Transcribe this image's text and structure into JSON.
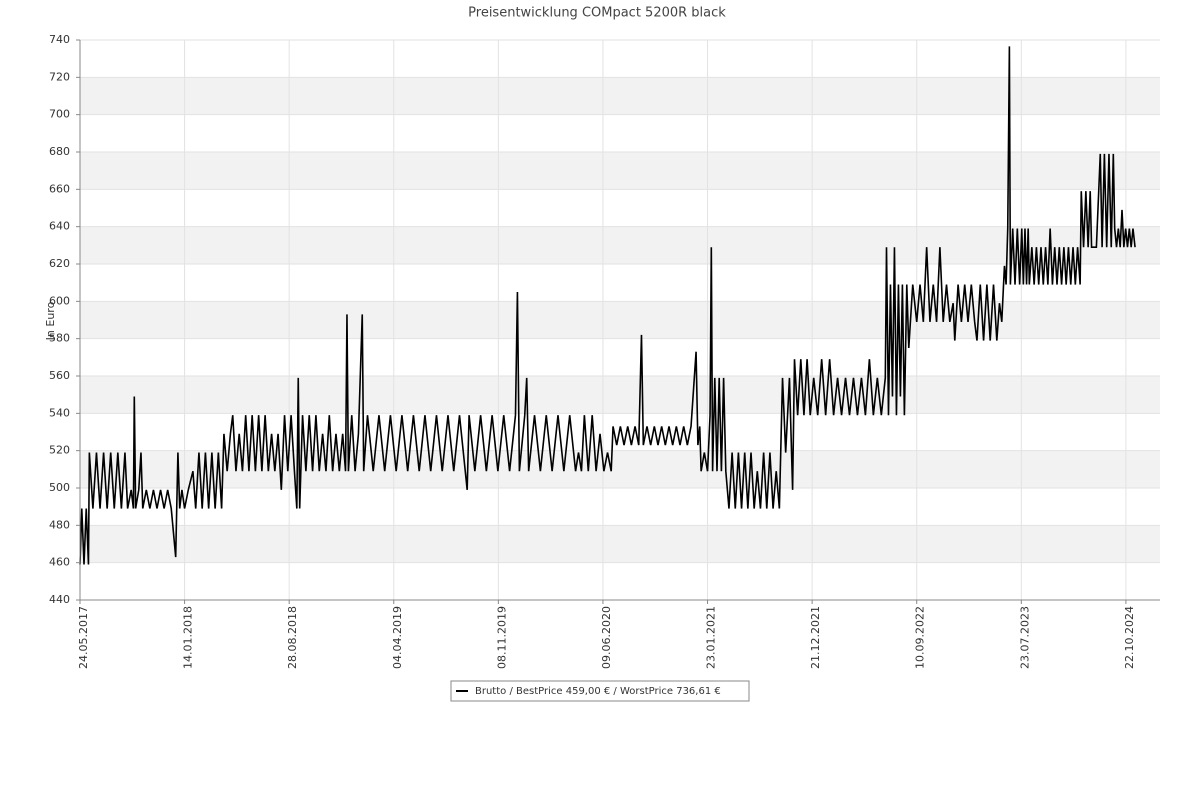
{
  "chart_data": {
    "type": "line",
    "title": "Preisentwicklung COMpact 5200R black",
    "y_label": "In Euro",
    "ylim": [
      440,
      740
    ],
    "yticks": [
      440,
      460,
      480,
      500,
      520,
      540,
      560,
      580,
      600,
      620,
      640,
      660,
      680,
      700,
      720,
      740
    ],
    "xlim": [
      "24.05.2017",
      "20.03.2025"
    ],
    "xticks": [
      "24.05.2017",
      "14.01.2018",
      "28.08.2018",
      "04.04.2019",
      "08.11.2019",
      "09.06.2020",
      "23.01.2021",
      "21.12.2021",
      "10.09.2022",
      "23.07.2023",
      "22.10.2024"
    ],
    "grid": true,
    "legend": "bottom",
    "x": [
      "24.05.2017",
      "28.05.2017",
      "02.06.2017",
      "07.06.2017",
      "12.06.2017",
      "14.06.2017",
      "22.06.2017",
      "30.06.2017",
      "08.07.2017",
      "16.07.2017",
      "24.07.2017",
      "01.08.2017",
      "09.08.2017",
      "17.08.2017",
      "25.08.2017",
      "02.09.2017",
      "08.09.2017",
      "16.09.2017",
      "21.09.2017",
      "23.09.2017",
      "26.09.2017",
      "03.10.2017",
      "08.10.2017",
      "12.10.2017",
      "20.10.2017",
      "28.10.2017",
      "05.11.2017",
      "13.11.2017",
      "21.11.2017",
      "29.11.2017",
      "07.12.2017",
      "15.12.2017",
      "25.12.2017",
      "30.12.2017",
      "03.01.2018",
      "08.01.2018",
      "14.01.2018",
      "22.01.2018",
      "01.02.2018",
      "07.02.2018",
      "14.02.2018",
      "21.02.2018",
      "28.02.2018",
      "07.03.2018",
      "14.03.2018",
      "21.03.2018",
      "28.03.2018",
      "04.04.2018",
      "09.04.2018",
      "16.04.2018",
      "23.04.2018",
      "28.04.2018",
      "05.05.2018",
      "12.05.2018",
      "19.05.2018",
      "26.05.2018",
      "02.06.2018",
      "09.06.2018",
      "16.06.2018",
      "23.06.2018",
      "30.06.2018",
      "07.07.2018",
      "14.07.2018",
      "21.07.2018",
      "28.07.2018",
      "04.08.2018",
      "11.08.2018",
      "18.08.2018",
      "25.08.2018",
      "01.09.2018",
      "08.09.2018",
      "13.09.2018",
      "16.09.2018",
      "19.09.2018",
      "25.09.2018",
      "02.10.2018",
      "09.10.2018",
      "16.10.2018",
      "23.10.2018",
      "30.10.2018",
      "06.11.2018",
      "13.11.2018",
      "20.11.2018",
      "27.11.2018",
      "04.12.2018",
      "11.12.2018",
      "18.12.2018",
      "24.12.2018",
      "27.12.2018",
      "30.12.2018",
      "06.01.2019",
      "13.01.2019",
      "20.01.2019",
      "28.01.2019",
      "31.01.2019",
      "08.02.2019",
      "20.02.2019",
      "04.03.2019",
      "16.03.2019",
      "28.03.2019",
      "09.04.2019",
      "21.04.2019",
      "03.05.2019",
      "15.05.2019",
      "27.05.2019",
      "08.06.2019",
      "20.06.2019",
      "02.07.2019",
      "14.07.2019",
      "26.07.2019",
      "07.08.2019",
      "19.08.2019",
      "31.08.2019",
      "04.09.2019",
      "08.09.2019",
      "20.09.2019",
      "02.10.2019",
      "14.10.2019",
      "26.10.2019",
      "07.11.2019",
      "19.11.2019",
      "01.12.2019",
      "13.12.2019",
      "17.12.2019",
      "21.12.2019",
      "01.01.2020",
      "05.01.2020",
      "09.01.2020",
      "21.01.2020",
      "02.02.2020",
      "14.02.2020",
      "26.02.2020",
      "09.03.2020",
      "21.03.2020",
      "02.04.2020",
      "14.04.2020",
      "20.04.2020",
      "26.04.2020",
      "02.05.2020",
      "10.05.2020",
      "18.05.2020",
      "26.05.2020",
      "03.06.2020",
      "11.06.2020",
      "19.06.2020",
      "27.06.2020",
      "01.07.2020",
      "09.07.2020",
      "17.07.2020",
      "25.07.2020",
      "02.08.2020",
      "10.08.2020",
      "18.08.2020",
      "26.08.2020",
      "01.09.2020",
      "05.09.2020",
      "13.09.2020",
      "21.09.2020",
      "29.09.2020",
      "07.10.2020",
      "15.10.2020",
      "23.10.2020",
      "31.10.2020",
      "08.11.2020",
      "16.11.2020",
      "24.11.2020",
      "02.12.2020",
      "10.12.2020",
      "18.12.2020",
      "29.12.2020",
      "02.01.2021",
      "06.01.2021",
      "09.01.2021",
      "16.01.2021",
      "23.01.2021",
      "31.01.2021",
      "04.02.2021",
      "08.02.2021",
      "15.02.2021",
      "22.02.2021",
      "01.03.2021",
      "08.03.2021",
      "15.03.2021",
      "22.03.2021",
      "01.04.2021",
      "11.04.2021",
      "21.04.2021",
      "01.05.2021",
      "11.05.2021",
      "21.05.2021",
      "31.05.2021",
      "10.06.2021",
      "20.06.2021",
      "30.06.2021",
      "10.07.2021",
      "20.07.2021",
      "30.07.2021",
      "09.08.2021",
      "19.08.2021",
      "29.08.2021",
      "08.09.2021",
      "18.09.2021",
      "28.09.2021",
      "10.10.2021",
      "20.10.2021",
      "26.10.2021",
      "05.11.2021",
      "15.11.2021",
      "25.11.2021",
      "05.12.2021",
      "15.12.2021",
      "25.12.2021",
      "04.01.2022",
      "14.01.2022",
      "24.01.2022",
      "03.02.2022",
      "13.02.2022",
      "23.02.2022",
      "05.03.2022",
      "15.03.2022",
      "25.03.2022",
      "04.04.2022",
      "14.04.2022",
      "24.04.2022",
      "04.05.2022",
      "14.05.2022",
      "24.05.2022",
      "03.06.2022",
      "13.06.2022",
      "23.06.2022",
      "26.06.2022",
      "01.07.2022",
      "06.07.2022",
      "11.07.2022",
      "16.07.2022",
      "21.07.2022",
      "26.07.2022",
      "31.07.2022",
      "05.08.2022",
      "10.08.2022",
      "16.08.2022",
      "21.08.2022",
      "31.08.2022",
      "10.09.2022",
      "20.09.2022",
      "30.09.2022",
      "10.10.2022",
      "20.10.2022",
      "30.10.2022",
      "09.11.2022",
      "19.11.2022",
      "29.11.2022",
      "09.12.2022",
      "19.12.2022",
      "29.12.2022",
      "03.01.2023",
      "13.01.2023",
      "23.01.2023",
      "02.02.2023",
      "12.02.2023",
      "22.02.2023",
      "04.03.2023",
      "11.03.2023",
      "21.03.2023",
      "31.03.2023",
      "10.04.2023",
      "20.04.2023",
      "30.04.2023",
      "10.05.2023",
      "18.05.2023",
      "25.05.2023",
      "02.06.2023",
      "07.06.2023",
      "12.06.2023",
      "17.06.2023",
      "20.06.2023",
      "27.06.2023",
      "04.07.2023",
      "11.07.2023",
      "18.07.2023",
      "25.07.2023",
      "01.08.2023",
      "08.08.2023",
      "15.08.2023",
      "22.08.2023",
      "27.08.2023",
      "07.09.2023",
      "17.09.2023",
      "27.09.2023",
      "07.10.2023",
      "17.10.2023",
      "27.10.2023",
      "06.11.2023",
      "16.11.2023",
      "26.11.2023",
      "06.12.2023",
      "16.12.2023",
      "26.12.2023",
      "05.01.2024",
      "15.01.2024",
      "25.01.2024",
      "04.02.2024",
      "14.02.2024",
      "24.02.2024",
      "05.03.2024",
      "15.03.2024",
      "25.03.2024",
      "05.04.2024",
      "10.04.2024",
      "20.04.2024",
      "30.04.2024",
      "10.05.2024",
      "19.05.2024",
      "25.05.2024",
      "15.06.2024",
      "02.07.2024",
      "10.07.2024",
      "20.07.2024",
      "30.07.2024",
      "09.08.2024",
      "19.08.2024",
      "28.08.2024",
      "03.09.2024",
      "11.09.2024",
      "19.09.2024",
      "27.09.2024",
      "05.10.2024",
      "13.10.2024",
      "21.10.2024",
      "29.10.2024",
      "06.11.2024",
      "14.11.2024",
      "22.11.2024",
      "01.12.2024"
    ],
    "series": [
      {
        "name": "Brutto / BestPrice  459,00 € / WorstPrice  736,61 €",
        "color": "#000000",
        "values": [
          459,
          489,
          459,
          489,
          459,
          519,
          489,
          519,
          489,
          519,
          489,
          519,
          489,
          519,
          489,
          519,
          489,
          499,
          489,
          549,
          489,
          499,
          519,
          489,
          499,
          489,
          499,
          489,
          499,
          489,
          499,
          489,
          463,
          519,
          489,
          499,
          489,
          499,
          509,
          489,
          519,
          489,
          519,
          489,
          519,
          489,
          519,
          489,
          529,
          509,
          529,
          539,
          509,
          529,
          509,
          539,
          509,
          539,
          509,
          539,
          509,
          539,
          509,
          529,
          509,
          529,
          499,
          539,
          509,
          539,
          509,
          489,
          559,
          489,
          539,
          509,
          539,
          509,
          539,
          509,
          529,
          509,
          539,
          509,
          529,
          509,
          529,
          509,
          593,
          509,
          539,
          509,
          529,
          593,
          509,
          539,
          509,
          539,
          509,
          539,
          509,
          539,
          509,
          539,
          509,
          539,
          509,
          539,
          509,
          539,
          509,
          539,
          509,
          499,
          539,
          509,
          539,
          509,
          539,
          509,
          539,
          509,
          539,
          605,
          509,
          539,
          559,
          509,
          539,
          509,
          539,
          509,
          539,
          509,
          539,
          509,
          519,
          509,
          539,
          509,
          539,
          509,
          529,
          509,
          519,
          509,
          533,
          523,
          533,
          523,
          533,
          523,
          533,
          523,
          582,
          523,
          533,
          523,
          533,
          523,
          533,
          523,
          533,
          523,
          533,
          523,
          533,
          523,
          533,
          573,
          523,
          533,
          509,
          519,
          509,
          539,
          629,
          509,
          559,
          509,
          559,
          509,
          559,
          509,
          489,
          519,
          489,
          519,
          489,
          519,
          489,
          519,
          489,
          509,
          489,
          519,
          489,
          519,
          489,
          509,
          489,
          559,
          519,
          559,
          499,
          569,
          539,
          569,
          539,
          569,
          539,
          559,
          539,
          569,
          539,
          569,
          539,
          559,
          539,
          559,
          539,
          559,
          539,
          559,
          539,
          569,
          539,
          559,
          539,
          559,
          629,
          539,
          609,
          549,
          629,
          539,
          609,
          549,
          609,
          539,
          609,
          575,
          609,
          589,
          609,
          589,
          629,
          589,
          609,
          589,
          629,
          589,
          609,
          589,
          599,
          579,
          609,
          589,
          609,
          589,
          609,
          589,
          579,
          609,
          579,
          609,
          579,
          609,
          579,
          599,
          589,
          619,
          609,
          639,
          736.61,
          609,
          639,
          609,
          639,
          609,
          639,
          609,
          639,
          609,
          639,
          609,
          629,
          609,
          629,
          609,
          629,
          609,
          629,
          609,
          639,
          609,
          629,
          609,
          629,
          609,
          629,
          609,
          629,
          609,
          629,
          609,
          629,
          609,
          659,
          629,
          659,
          629,
          659,
          629,
          629,
          679,
          629,
          679,
          629,
          679,
          629,
          679,
          639,
          629,
          639,
          629,
          649,
          629,
          639,
          629,
          639,
          629,
          639,
          629
        ]
      }
    ]
  }
}
